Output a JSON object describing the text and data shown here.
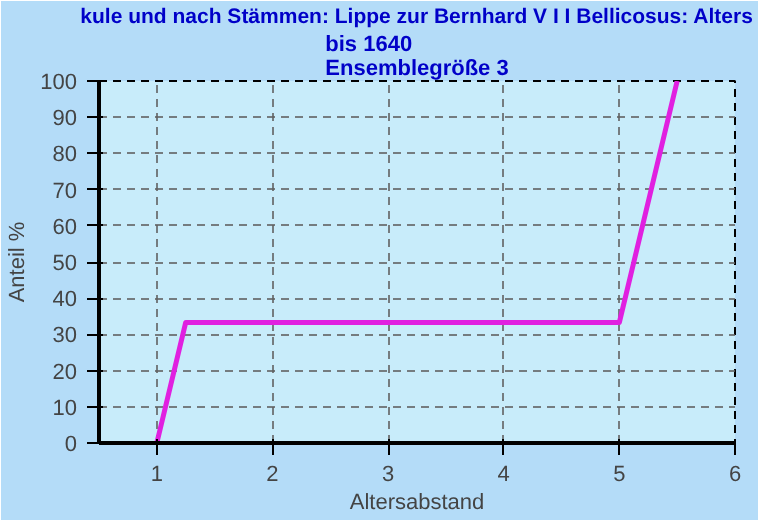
{
  "chart_data": {
    "type": "line",
    "title": "kule und nach Stämmen: Lippe zur Bernhard V I I Bellicosus: Alters",
    "subtitle": "bis 1640\nEnsemblegröße 3",
    "xlabel": "Altersabstand",
    "ylabel": "Anteil %",
    "x": [
      1,
      1.25,
      5,
      5.5
    ],
    "series": [
      {
        "color": "#e020e0",
        "values": [
          0,
          33.3,
          33.3,
          100
        ]
      }
    ],
    "xlim": [
      0.5,
      6
    ],
    "xticks": [
      1,
      2,
      3,
      4,
      5,
      6
    ],
    "ylim": [
      0,
      100
    ],
    "yticks": [
      0,
      10,
      20,
      30,
      40,
      50,
      60,
      70,
      80,
      90,
      100
    ],
    "grid": true,
    "marker": "none",
    "line_style": "solid"
  }
}
